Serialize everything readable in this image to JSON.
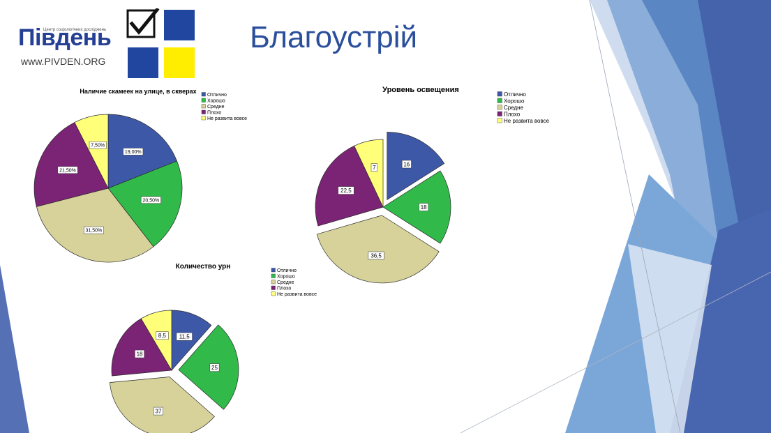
{
  "slide": {
    "title": "Благоустрій"
  },
  "logo": {
    "name": "Південь",
    "tagline": "Центр соціологічних досліджень",
    "url": "www.PIVDEN.ORG",
    "colors": {
      "blue": "#2146a0",
      "yellow": "#ffee00",
      "text": "#243f94"
    },
    "icon": "checkbox-check-icon"
  },
  "chart_data": [
    {
      "type": "pie",
      "title": "Наличие скамеек на улице, в скверах",
      "categories": [
        "Отлично",
        "Хорошо",
        "Средне",
        "Плохо",
        "Не развита вовсе"
      ],
      "values": [
        19.0,
        20.5,
        31.5,
        21.5,
        7.5
      ],
      "data_labels": [
        "19,00%",
        "20,50%",
        "31,50%",
        "21,50%",
        "7,50%"
      ],
      "colors": [
        "#3e58a8",
        "#31b94a",
        "#d6d29a",
        "#7b2375",
        "#ffff7a"
      ],
      "exploded": false,
      "legend": "top-right"
    },
    {
      "type": "pie",
      "title": "Уровень освещения",
      "categories": [
        "Отлично",
        "Хорошо",
        "Средне",
        "Плохо",
        "Не развита вовсе"
      ],
      "values": [
        16,
        18,
        36.5,
        22.5,
        7
      ],
      "data_labels": [
        "16",
        "18",
        "36,5",
        "22,5",
        "7"
      ],
      "colors": [
        "#3e58a8",
        "#31b94a",
        "#d6d29a",
        "#7b2375",
        "#ffff7a"
      ],
      "exploded": true,
      "legend": "top-right"
    },
    {
      "type": "pie",
      "title": "Количество урн",
      "categories": [
        "Отлично",
        "Хорошо",
        "Средне",
        "Плохо",
        "Не развита вовсе"
      ],
      "values": [
        11.5,
        25,
        37,
        18,
        8.5
      ],
      "data_labels": [
        "11,5",
        "25",
        "37",
        "18",
        "8,5"
      ],
      "colors": [
        "#3e58a8",
        "#31b94a",
        "#d6d29a",
        "#7b2375",
        "#ffff7a"
      ],
      "exploded": true,
      "legend": "top-right"
    }
  ]
}
